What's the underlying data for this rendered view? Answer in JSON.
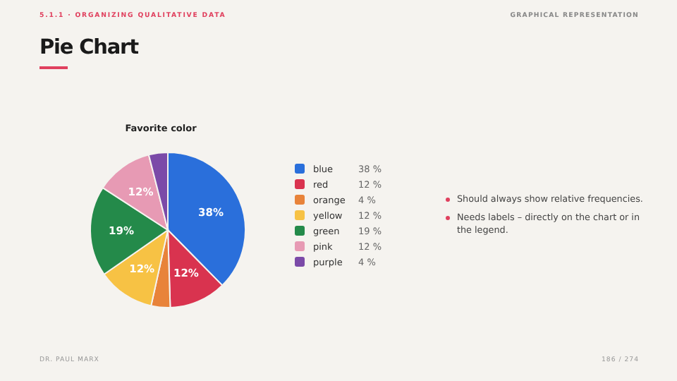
{
  "chart_data": {
    "type": "pie",
    "title": "Favorite color",
    "categories": [
      "blue",
      "red",
      "orange",
      "yellow",
      "green",
      "pink",
      "purple"
    ],
    "values": [
      38,
      12,
      4,
      12,
      19,
      12,
      4
    ],
    "colors": [
      "#2a6fdb",
      "#d9334f",
      "#e8833a",
      "#f7c244",
      "#248a4a",
      "#e79ab4",
      "#7b4aa8"
    ],
    "value_labels": [
      "38%",
      "12%",
      null,
      "12%",
      "19%",
      "12%",
      null
    ],
    "legend": "right",
    "annotations": [
      "5.1.1 · ORGANIZING QUALITATIVE DATA",
      "GRAPHICAL REPRESENTATION",
      "Pie Chart",
      "Should always show relative frequencies.",
      "Needs labels – directly on the chart or in the legend.",
      "DR. PAUL MARX",
      "186 / 274",
      "38 %",
      "12 %",
      "4 %",
      "12 %",
      "19 %",
      "12 %",
      "4 %"
    ]
  }
}
